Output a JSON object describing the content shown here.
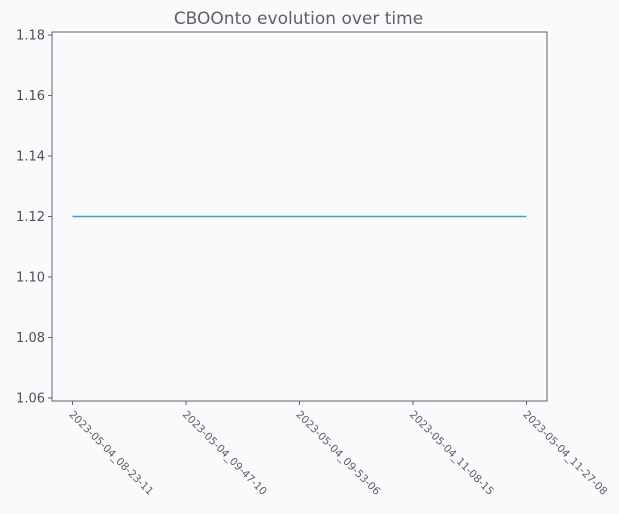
{
  "chart_data": {
    "type": "line",
    "title": "CBOOnto evolution over time",
    "xlabel": "",
    "ylabel": "",
    "categories": [
      "2023-05-04_08-23-11",
      "2023-05-04_09-47-10",
      "2023-05-04_09-53-06",
      "2023-05-04_11-08-15",
      "2023-05-04_11-27-08"
    ],
    "series": [
      {
        "values": [
          1.12,
          1.12,
          1.12,
          1.12,
          1.12
        ],
        "color": "#3a9fd8"
      }
    ],
    "yticks": [
      1.06,
      1.08,
      1.1,
      1.12,
      1.14,
      1.16,
      1.18
    ],
    "ylim": [
      1.059,
      1.181
    ],
    "grid": false,
    "legend": "none"
  }
}
